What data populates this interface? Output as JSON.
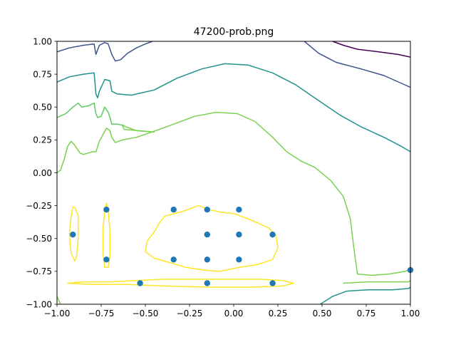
{
  "chart_data": {
    "type": "contour-scatter",
    "title": "47200-prob.png",
    "xlabel": "",
    "ylabel": "",
    "xlim": [
      -1.0,
      1.0
    ],
    "ylim": [
      -1.0,
      1.0
    ],
    "x_ticks": [
      {
        "value": -1.0,
        "label": "−1.00"
      },
      {
        "value": -0.75,
        "label": "−0.75"
      },
      {
        "value": -0.5,
        "label": "−0.50"
      },
      {
        "value": -0.25,
        "label": "−0.25"
      },
      {
        "value": 0.0,
        "label": "0.00"
      },
      {
        "value": 0.25,
        "label": "0.25"
      },
      {
        "value": 0.5,
        "label": "0.50"
      },
      {
        "value": 0.75,
        "label": "0.75"
      },
      {
        "value": 1.0,
        "label": "1.00"
      }
    ],
    "y_ticks": [
      {
        "value": -1.0,
        "label": "−1.00"
      },
      {
        "value": -0.75,
        "label": "−0.75"
      },
      {
        "value": -0.5,
        "label": "−0.50"
      },
      {
        "value": -0.25,
        "label": "−0.25"
      },
      {
        "value": 0.0,
        "label": "0.00"
      },
      {
        "value": 0.25,
        "label": "0.25"
      },
      {
        "value": 0.5,
        "label": "0.50"
      },
      {
        "value": 0.75,
        "label": "0.75"
      },
      {
        "value": 1.0,
        "label": "1.00"
      }
    ],
    "grid": false,
    "scatter_color": "#1f77b4",
    "points": [
      [
        -0.91,
        -0.47
      ],
      [
        -0.72,
        -0.28
      ],
      [
        -0.72,
        -0.66
      ],
      [
        -0.53,
        -0.84
      ],
      [
        -0.15,
        -0.84
      ],
      [
        0.22,
        -0.84
      ],
      [
        -0.34,
        -0.28
      ],
      [
        -0.15,
        -0.28
      ],
      [
        0.03,
        -0.28
      ],
      [
        -0.15,
        -0.47
      ],
      [
        0.03,
        -0.47
      ],
      [
        0.22,
        -0.47
      ],
      [
        -0.34,
        -0.66
      ],
      [
        -0.15,
        -0.66
      ],
      [
        0.03,
        -0.66
      ],
      [
        1.0,
        -0.74
      ]
    ],
    "contours": [
      {
        "color": "#440154",
        "lines": [
          [
            [
              0.56,
              1.0
            ],
            [
              0.62,
              0.97
            ],
            [
              0.7,
              0.94
            ],
            [
              0.82,
              0.92
            ],
            [
              0.93,
              0.9
            ],
            [
              1.0,
              0.88
            ]
          ]
        ]
      },
      {
        "color": "#3b528b",
        "lines": [
          [
            [
              -1.0,
              0.92
            ],
            [
              -0.93,
              0.95
            ],
            [
              -0.85,
              0.97
            ],
            [
              -0.79,
              0.98
            ],
            [
              -0.78,
              0.9
            ],
            [
              -0.76,
              0.97
            ],
            [
              -0.73,
              0.99
            ],
            [
              -0.71,
              0.98
            ],
            [
              -0.69,
              0.9
            ],
            [
              -0.67,
              0.85
            ],
            [
              -0.64,
              0.86
            ],
            [
              -0.6,
              0.91
            ],
            [
              -0.55,
              0.95
            ],
            [
              -0.5,
              0.98
            ],
            [
              -0.46,
              1.0
            ]
          ],
          [
            [
              0.4,
              1.0
            ],
            [
              0.48,
              0.91
            ],
            [
              0.58,
              0.84
            ],
            [
              0.72,
              0.79
            ],
            [
              0.85,
              0.74
            ],
            [
              0.95,
              0.68
            ],
            [
              1.0,
              0.65
            ]
          ]
        ]
      },
      {
        "color": "#21918c",
        "lines": [
          [
            [
              -1.0,
              0.69
            ],
            [
              -0.93,
              0.73
            ],
            [
              -0.85,
              0.75
            ],
            [
              -0.79,
              0.76
            ],
            [
              -0.78,
              0.6
            ],
            [
              -0.77,
              0.57
            ],
            [
              -0.76,
              0.62
            ],
            [
              -0.73,
              0.71
            ],
            [
              -0.7,
              0.7
            ],
            [
              -0.69,
              0.62
            ],
            [
              -0.66,
              0.6
            ],
            [
              -0.58,
              0.59
            ],
            [
              -0.45,
              0.63
            ],
            [
              -0.32,
              0.72
            ],
            [
              -0.18,
              0.79
            ],
            [
              -0.05,
              0.83
            ],
            [
              0.08,
              0.82
            ],
            [
              0.22,
              0.76
            ],
            [
              0.35,
              0.67
            ],
            [
              0.48,
              0.55
            ],
            [
              0.6,
              0.44
            ],
            [
              0.72,
              0.35
            ],
            [
              0.85,
              0.27
            ],
            [
              0.95,
              0.2
            ],
            [
              1.0,
              0.16
            ]
          ],
          [
            [
              0.49,
              -1.0
            ],
            [
              0.56,
              -0.94
            ],
            [
              0.64,
              -0.9
            ],
            [
              0.76,
              -0.89
            ],
            [
              0.9,
              -0.89
            ],
            [
              0.99,
              -0.88
            ],
            [
              1.0,
              -0.87
            ]
          ],
          [
            [
              0.99,
              -0.75
            ],
            [
              1.0,
              -0.72
            ]
          ],
          [
            [
              -1.0,
              0.83
            ],
            [
              -1.0,
              0.83
            ]
          ]
        ]
      },
      {
        "color": "#5ec962",
        "lines": [
          [
            [
              -1.0,
              0.42
            ],
            [
              -0.95,
              0.45
            ],
            [
              -0.91,
              0.5
            ],
            [
              -0.88,
              0.53
            ],
            [
              -0.86,
              0.5
            ],
            [
              -0.82,
              0.51
            ],
            [
              -0.79,
              0.53
            ],
            [
              -0.78,
              0.45
            ],
            [
              -0.77,
              0.42
            ],
            [
              -0.75,
              0.43
            ],
            [
              -0.73,
              0.5
            ],
            [
              -0.71,
              0.46
            ],
            [
              -0.7,
              0.42
            ],
            [
              -0.69,
              0.37
            ],
            [
              -0.68,
              0.37
            ],
            [
              -0.66,
              0.37
            ],
            [
              -0.62,
              0.36
            ]
          ]
        ]
      },
      {
        "color": "#7ad151",
        "lines": [
          [
            [
              -1.0,
              0.0
            ],
            [
              -0.98,
              0.02
            ],
            [
              -0.96,
              0.1
            ],
            [
              -0.94,
              0.2
            ],
            [
              -0.92,
              0.24
            ],
            [
              -0.9,
              0.21
            ],
            [
              -0.87,
              0.15
            ],
            [
              -0.85,
              0.14
            ],
            [
              -0.8,
              0.16
            ],
            [
              -0.78,
              0.16
            ],
            [
              -0.76,
              0.24
            ],
            [
              -0.74,
              0.29
            ],
            [
              -0.72,
              0.34
            ],
            [
              -0.7,
              0.32
            ],
            [
              -0.69,
              0.27
            ],
            [
              -0.67,
              0.23
            ],
            [
              -0.63,
              0.25
            ],
            [
              -0.55,
              0.27
            ],
            [
              -0.42,
              0.33
            ],
            [
              -0.32,
              0.38
            ],
            [
              -0.22,
              0.43
            ],
            [
              -0.1,
              0.46
            ],
            [
              0.02,
              0.45
            ],
            [
              0.12,
              0.39
            ],
            [
              0.22,
              0.27
            ],
            [
              0.3,
              0.16
            ],
            [
              0.38,
              0.09
            ],
            [
              0.46,
              0.04
            ],
            [
              0.55,
              -0.06
            ],
            [
              0.62,
              -0.18
            ],
            [
              0.66,
              -0.35
            ],
            [
              0.68,
              -0.57
            ],
            [
              0.7,
              -0.77
            ],
            [
              0.78,
              -0.78
            ],
            [
              0.88,
              -0.77
            ],
            [
              0.97,
              -0.75
            ],
            [
              1.0,
              -0.73
            ]
          ],
          [
            [
              -0.63,
              0.36
            ],
            [
              -0.55,
              0.32
            ],
            [
              -0.45,
              0.31
            ],
            [
              -0.62,
              0.33
            ],
            [
              -0.63,
              0.36
            ]
          ],
          [
            [
              0.62,
              -0.84
            ],
            [
              0.76,
              -0.83
            ],
            [
              0.9,
              -0.83
            ],
            [
              0.99,
              -0.83
            ],
            [
              1.0,
              -0.82
            ]
          ],
          [
            [
              -1.0,
              -0.94
            ],
            [
              -0.98,
              -1.0
            ]
          ]
        ]
      },
      {
        "color": "#fde725",
        "lines": [
          [
            [
              -0.91,
              -0.26
            ],
            [
              -0.92,
              -0.33
            ],
            [
              -0.93,
              -0.47
            ],
            [
              -0.92,
              -0.61
            ],
            [
              -0.9,
              -0.67
            ],
            [
              -0.89,
              -0.64
            ],
            [
              -0.88,
              -0.5
            ],
            [
              -0.88,
              -0.33
            ],
            [
              -0.9,
              -0.26
            ],
            [
              -0.91,
              -0.26
            ]
          ],
          [
            [
              -0.72,
              -0.23
            ],
            [
              -0.73,
              -0.3
            ],
            [
              -0.74,
              -0.42
            ],
            [
              -0.74,
              -0.61
            ],
            [
              -0.73,
              -0.72
            ],
            [
              -0.71,
              -0.72
            ],
            [
              -0.7,
              -0.63
            ],
            [
              -0.7,
              -0.45
            ],
            [
              -0.71,
              -0.29
            ],
            [
              -0.72,
              -0.23
            ]
          ],
          [
            [
              -0.39,
              -0.33
            ],
            [
              -0.28,
              -0.29
            ],
            [
              -0.2,
              -0.25
            ],
            [
              -0.14,
              -0.28
            ],
            [
              -0.07,
              -0.3
            ],
            [
              0.0,
              -0.31
            ],
            [
              0.1,
              -0.36
            ],
            [
              0.2,
              -0.42
            ],
            [
              0.24,
              -0.48
            ],
            [
              0.25,
              -0.57
            ],
            [
              0.22,
              -0.66
            ],
            [
              0.13,
              -0.7
            ],
            [
              0.03,
              -0.72
            ],
            [
              -0.08,
              -0.75
            ],
            [
              -0.17,
              -0.74
            ],
            [
              -0.27,
              -0.72
            ],
            [
              -0.37,
              -0.68
            ],
            [
              -0.45,
              -0.65
            ],
            [
              -0.5,
              -0.6
            ],
            [
              -0.49,
              -0.52
            ],
            [
              -0.45,
              -0.45
            ],
            [
              -0.42,
              -0.38
            ],
            [
              -0.39,
              -0.33
            ]
          ],
          [
            [
              -0.94,
              -0.84
            ],
            [
              -0.85,
              -0.83
            ],
            [
              -0.7,
              -0.83
            ],
            [
              -0.55,
              -0.82
            ],
            [
              -0.4,
              -0.81
            ],
            [
              -0.2,
              -0.81
            ],
            [
              0.0,
              -0.81
            ],
            [
              0.15,
              -0.81
            ],
            [
              0.28,
              -0.82
            ],
            [
              0.34,
              -0.84
            ],
            [
              0.28,
              -0.86
            ],
            [
              0.1,
              -0.87
            ],
            [
              -0.15,
              -0.87
            ],
            [
              -0.4,
              -0.86
            ],
            [
              -0.6,
              -0.85
            ],
            [
              -0.8,
              -0.85
            ],
            [
              -0.94,
              -0.84
            ]
          ]
        ]
      }
    ]
  }
}
